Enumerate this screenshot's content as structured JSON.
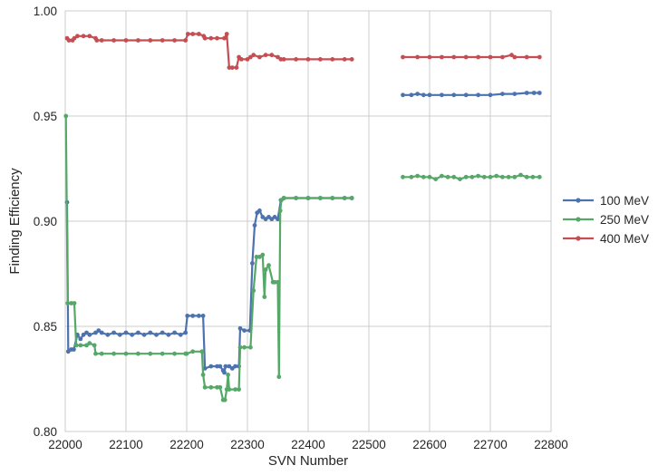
{
  "chart_data": {
    "type": "line",
    "title": "",
    "xlabel": "SVN Number",
    "ylabel": "Finding Efficiency",
    "xlim": [
      22000,
      22800
    ],
    "ylim": [
      0.8,
      1.0
    ],
    "x_ticks": [
      22000,
      22100,
      22200,
      22300,
      22400,
      22500,
      22600,
      22700,
      22800
    ],
    "y_ticks": [
      "0.80",
      "0.85",
      "0.90",
      "0.95",
      "1.00"
    ],
    "grid": true,
    "legend_position": "right",
    "series": [
      {
        "name": "100 MeV",
        "color": "#4c72b0",
        "segments": [
          [
            [
              22003,
              0.909
            ],
            [
              22005,
              0.838
            ],
            [
              22010,
              0.839
            ],
            [
              22014,
              0.839
            ],
            [
              22020,
              0.846
            ],
            [
              22025,
              0.844
            ],
            [
              22030,
              0.846
            ],
            [
              22035,
              0.847
            ],
            [
              22040,
              0.846
            ],
            [
              22050,
              0.847
            ],
            [
              22055,
              0.848
            ],
            [
              22060,
              0.847
            ],
            [
              22070,
              0.846
            ],
            [
              22080,
              0.847
            ],
            [
              22090,
              0.846
            ],
            [
              22100,
              0.847
            ],
            [
              22110,
              0.846
            ],
            [
              22120,
              0.847
            ],
            [
              22130,
              0.846
            ],
            [
              22140,
              0.847
            ],
            [
              22150,
              0.846
            ],
            [
              22160,
              0.847
            ],
            [
              22170,
              0.846
            ],
            [
              22180,
              0.847
            ],
            [
              22190,
              0.846
            ],
            [
              22198,
              0.847
            ],
            [
              22201,
              0.855
            ],
            [
              22210,
              0.855
            ],
            [
              22220,
              0.855
            ],
            [
              22227,
              0.855
            ],
            [
              22230,
              0.83
            ],
            [
              22240,
              0.831
            ],
            [
              22250,
              0.831
            ],
            [
              22255,
              0.831
            ],
            [
              22260,
              0.829
            ],
            [
              22262,
              0.828
            ],
            [
              22264,
              0.831
            ],
            [
              22270,
              0.831
            ],
            [
              22275,
              0.83
            ],
            [
              22280,
              0.831
            ],
            [
              22286,
              0.831
            ],
            [
              22288,
              0.849
            ],
            [
              22295,
              0.848
            ],
            [
              22304,
              0.848
            ],
            [
              22308,
              0.88
            ],
            [
              22312,
              0.898
            ],
            [
              22316,
              0.904
            ],
            [
              22320,
              0.905
            ],
            [
              22325,
              0.902
            ],
            [
              22330,
              0.901
            ],
            [
              22335,
              0.902
            ],
            [
              22340,
              0.901
            ],
            [
              22345,
              0.902
            ],
            [
              22350,
              0.901
            ],
            [
              22355,
              0.91
            ],
            [
              22360,
              0.911
            ],
            [
              22380,
              0.911
            ],
            [
              22400,
              0.911
            ],
            [
              22420,
              0.911
            ],
            [
              22440,
              0.911
            ],
            [
              22460,
              0.911
            ],
            [
              22472,
              0.911
            ]
          ],
          [
            [
              22556,
              0.96
            ],
            [
              22570,
              0.96
            ],
            [
              22580,
              0.9605
            ],
            [
              22590,
              0.96
            ],
            [
              22600,
              0.96
            ],
            [
              22620,
              0.96
            ],
            [
              22640,
              0.96
            ],
            [
              22660,
              0.96
            ],
            [
              22680,
              0.96
            ],
            [
              22700,
              0.96
            ],
            [
              22720,
              0.9605
            ],
            [
              22740,
              0.9605
            ],
            [
              22760,
              0.961
            ],
            [
              22772,
              0.961
            ],
            [
              22781,
              0.961
            ]
          ]
        ]
      },
      {
        "name": "250 MeV",
        "color": "#55a868",
        "segments": [
          [
            [
              22001,
              0.95
            ],
            [
              22004,
              0.861
            ],
            [
              22010,
              0.861
            ],
            [
              22015,
              0.861
            ],
            [
              22018,
              0.841
            ],
            [
              22025,
              0.841
            ],
            [
              22035,
              0.841
            ],
            [
              22040,
              0.842
            ],
            [
              22048,
              0.841
            ],
            [
              22050,
              0.837
            ],
            [
              22060,
              0.837
            ],
            [
              22080,
              0.837
            ],
            [
              22100,
              0.837
            ],
            [
              22120,
              0.837
            ],
            [
              22140,
              0.837
            ],
            [
              22160,
              0.837
            ],
            [
              22180,
              0.837
            ],
            [
              22198,
              0.837
            ],
            [
              22200,
              0.837
            ],
            [
              22210,
              0.838
            ],
            [
              22225,
              0.838
            ],
            [
              22227,
              0.827
            ],
            [
              22230,
              0.821
            ],
            [
              22240,
              0.821
            ],
            [
              22250,
              0.821
            ],
            [
              22255,
              0.821
            ],
            [
              22260,
              0.815
            ],
            [
              22263,
              0.815
            ],
            [
              22266,
              0.82
            ],
            [
              22268,
              0.827
            ],
            [
              22270,
              0.82
            ],
            [
              22280,
              0.82
            ],
            [
              22286,
              0.82
            ],
            [
              22288,
              0.84
            ],
            [
              22295,
              0.84
            ],
            [
              22305,
              0.84
            ],
            [
              22310,
              0.867
            ],
            [
              22315,
              0.883
            ],
            [
              22320,
              0.883
            ],
            [
              22325,
              0.884
            ],
            [
              22328,
              0.864
            ],
            [
              22330,
              0.877
            ],
            [
              22335,
              0.879
            ],
            [
              22342,
              0.871
            ],
            [
              22345,
              0.871
            ],
            [
              22350,
              0.871
            ],
            [
              22352,
              0.826
            ],
            [
              22354,
              0.905
            ],
            [
              22356,
              0.91
            ],
            [
              22360,
              0.911
            ],
            [
              22380,
              0.911
            ],
            [
              22400,
              0.911
            ],
            [
              22420,
              0.911
            ],
            [
              22440,
              0.911
            ],
            [
              22460,
              0.911
            ],
            [
              22472,
              0.911
            ]
          ],
          [
            [
              22556,
              0.921
            ],
            [
              22570,
              0.921
            ],
            [
              22580,
              0.9215
            ],
            [
              22590,
              0.921
            ],
            [
              22600,
              0.921
            ],
            [
              22610,
              0.92
            ],
            [
              22620,
              0.9215
            ],
            [
              22630,
              0.921
            ],
            [
              22640,
              0.921
            ],
            [
              22650,
              0.92
            ],
            [
              22660,
              0.921
            ],
            [
              22670,
              0.921
            ],
            [
              22680,
              0.9215
            ],
            [
              22690,
              0.921
            ],
            [
              22700,
              0.921
            ],
            [
              22710,
              0.9215
            ],
            [
              22720,
              0.921
            ],
            [
              22730,
              0.921
            ],
            [
              22740,
              0.921
            ],
            [
              22750,
              0.922
            ],
            [
              22760,
              0.921
            ],
            [
              22770,
              0.921
            ],
            [
              22781,
              0.921
            ]
          ]
        ]
      },
      {
        "name": "400 MeV",
        "color": "#c44e52",
        "segments": [
          [
            [
              22003,
              0.987
            ],
            [
              22006,
              0.986
            ],
            [
              22012,
              0.986
            ],
            [
              22015,
              0.987
            ],
            [
              22020,
              0.988
            ],
            [
              22030,
              0.988
            ],
            [
              22040,
              0.988
            ],
            [
              22050,
              0.987
            ],
            [
              22052,
              0.986
            ],
            [
              22060,
              0.986
            ],
            [
              22080,
              0.986
            ],
            [
              22100,
              0.986
            ],
            [
              22120,
              0.986
            ],
            [
              22140,
              0.986
            ],
            [
              22160,
              0.986
            ],
            [
              22180,
              0.986
            ],
            [
              22198,
              0.986
            ],
            [
              22202,
              0.989
            ],
            [
              22210,
              0.989
            ],
            [
              22220,
              0.989
            ],
            [
              22228,
              0.988
            ],
            [
              22230,
              0.987
            ],
            [
              22240,
              0.987
            ],
            [
              22250,
              0.987
            ],
            [
              22262,
              0.987
            ],
            [
              22266,
              0.989
            ],
            [
              22270,
              0.973
            ],
            [
              22275,
              0.973
            ],
            [
              22282,
              0.973
            ],
            [
              22286,
              0.978
            ],
            [
              22290,
              0.977
            ],
            [
              22300,
              0.977
            ],
            [
              22305,
              0.978
            ],
            [
              22310,
              0.979
            ],
            [
              22320,
              0.978
            ],
            [
              22330,
              0.979
            ],
            [
              22340,
              0.979
            ],
            [
              22350,
              0.978
            ],
            [
              22355,
              0.977
            ],
            [
              22360,
              0.977
            ],
            [
              22380,
              0.977
            ],
            [
              22400,
              0.977
            ],
            [
              22420,
              0.977
            ],
            [
              22440,
              0.977
            ],
            [
              22460,
              0.977
            ],
            [
              22472,
              0.977
            ]
          ],
          [
            [
              22556,
              0.978
            ],
            [
              22580,
              0.978
            ],
            [
              22600,
              0.978
            ],
            [
              22620,
              0.978
            ],
            [
              22640,
              0.978
            ],
            [
              22660,
              0.978
            ],
            [
              22680,
              0.978
            ],
            [
              22700,
              0.978
            ],
            [
              22720,
              0.978
            ],
            [
              22735,
              0.979
            ],
            [
              22740,
              0.978
            ],
            [
              22760,
              0.978
            ],
            [
              22781,
              0.978
            ]
          ]
        ]
      }
    ]
  }
}
